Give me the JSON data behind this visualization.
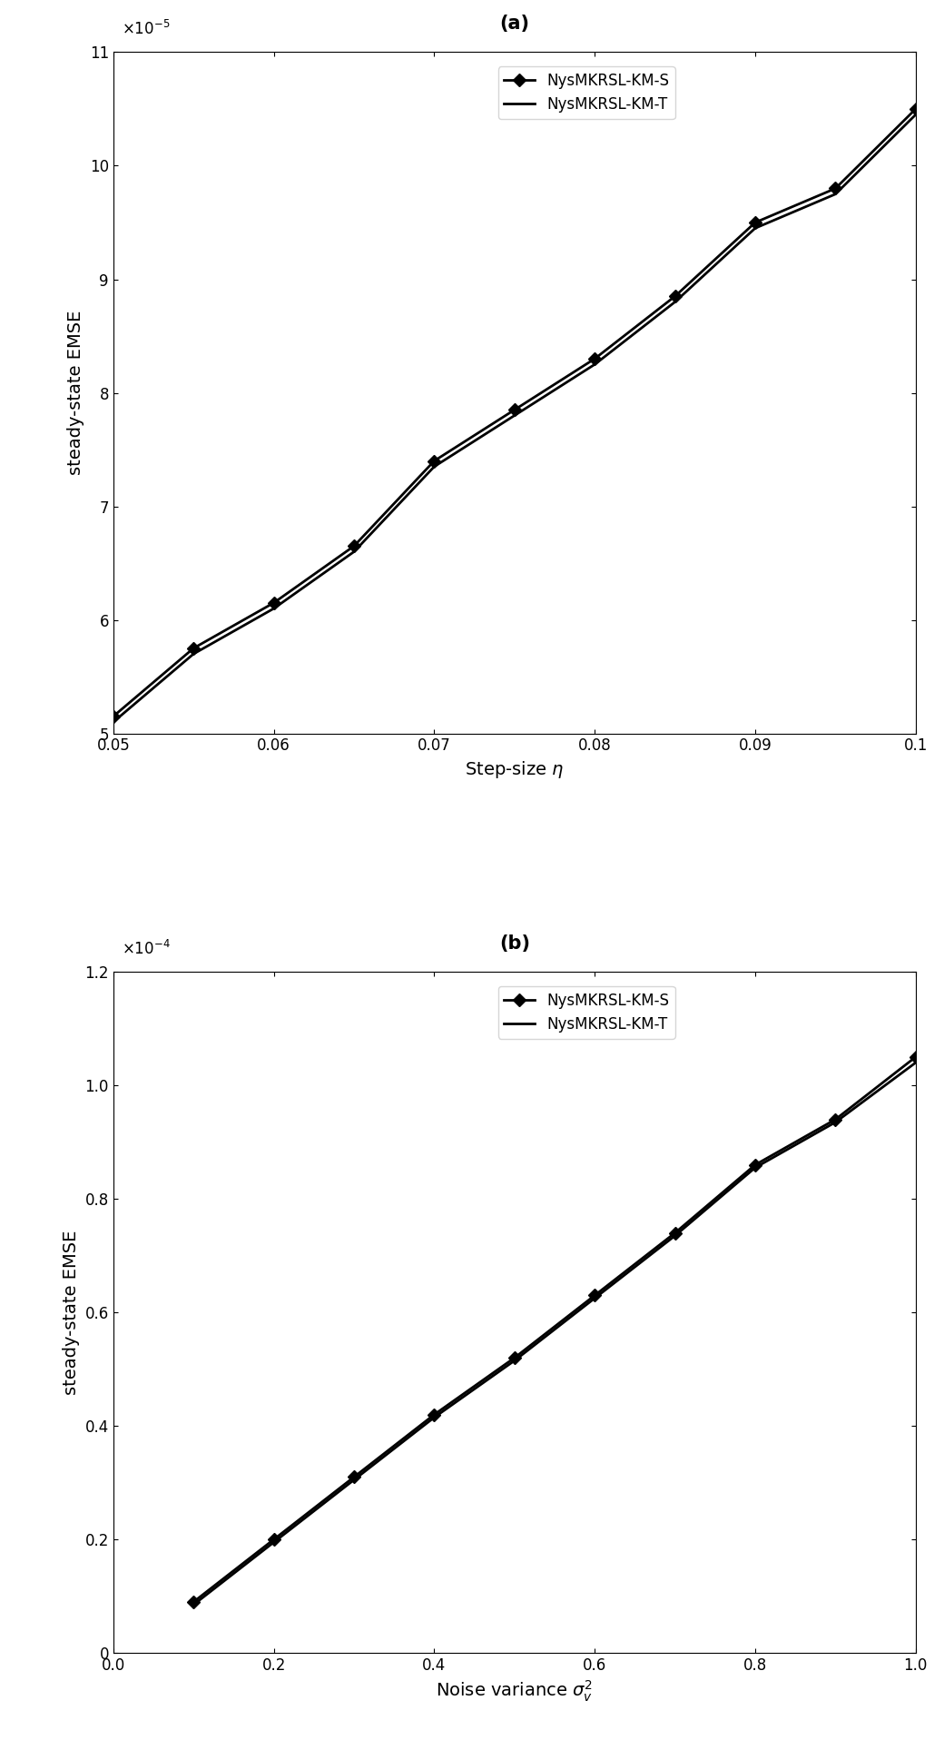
{
  "plot_a": {
    "x_S": [
      0.05,
      0.055,
      0.06,
      0.065,
      0.07,
      0.075,
      0.08,
      0.085,
      0.09,
      0.095,
      0.1
    ],
    "y_S": [
      5.15e-05,
      5.75e-05,
      6.15e-05,
      6.65e-05,
      7.4e-05,
      7.85e-05,
      8.3e-05,
      8.85e-05,
      9.5e-05,
      9.8e-05,
      0.000105
    ],
    "x_T": [
      0.05,
      0.055,
      0.06,
      0.065,
      0.07,
      0.075,
      0.08,
      0.085,
      0.09,
      0.095,
      0.1
    ],
    "y_T": [
      5.1e-05,
      5.7e-05,
      6.1e-05,
      6.6e-05,
      7.35e-05,
      7.8e-05,
      8.25e-05,
      8.8e-05,
      9.45e-05,
      9.75e-05,
      0.0001045
    ],
    "xlabel": "Step-size $\\eta$",
    "ylabel": "steady-state EMSE",
    "xlim": [
      0.05,
      0.1
    ],
    "ylim": [
      5e-05,
      0.00011
    ],
    "xticks": [
      0.05,
      0.06,
      0.07,
      0.08,
      0.09,
      0.1
    ],
    "yticks": [
      5e-05,
      6e-05,
      7e-05,
      8e-05,
      9e-05,
      0.0001,
      0.00011
    ],
    "yticklabels": [
      "5",
      "6",
      "7",
      "8",
      "9",
      "10",
      "11"
    ],
    "title": "(a)",
    "legend_S": "NysMKRSL-KM-S",
    "legend_T": "NysMKRSL-KM-T",
    "scale_label": "$\\times 10^{-5}$"
  },
  "plot_b": {
    "x_S": [
      0.1,
      0.2,
      0.3,
      0.4,
      0.5,
      0.6,
      0.7,
      0.8,
      0.9,
      1.0
    ],
    "y_S": [
      9e-06,
      2e-05,
      3.1e-05,
      4.2e-05,
      5.2e-05,
      6.3e-05,
      7.4e-05,
      8.6e-05,
      9.4e-05,
      0.000105
    ],
    "x_T": [
      0.1,
      0.2,
      0.3,
      0.4,
      0.5,
      0.6,
      0.7,
      0.8,
      0.9,
      1.0
    ],
    "y_T": [
      8.5e-06,
      1.95e-05,
      3.05e-05,
      4.15e-05,
      5.15e-05,
      6.25e-05,
      7.35e-05,
      8.55e-05,
      9.35e-05,
      0.000104
    ],
    "xlabel": "Noise variance $\\sigma_v^2$",
    "ylabel": "steady-state EMSE",
    "xlim": [
      0.0,
      1.0
    ],
    "ylim": [
      0.0,
      0.00012
    ],
    "xticks": [
      0.0,
      0.2,
      0.4,
      0.6,
      0.8,
      1.0
    ],
    "yticks": [
      0.0,
      2e-05,
      4e-05,
      6e-05,
      8e-05,
      0.0001,
      0.00012
    ],
    "yticklabels": [
      "0",
      "0.2",
      "0.4",
      "0.6",
      "0.8",
      "1.0",
      "1.2"
    ],
    "title": "(b)",
    "legend_S": "NysMKRSL-KM-S",
    "legend_T": "NysMKRSL-KM-T",
    "scale_label": "$\\times 10^{-4}$"
  },
  "line_color": "#000000",
  "marker_S": "D",
  "marker_size": 7,
  "linewidth": 2.0,
  "fontsize_label": 14,
  "fontsize_tick": 12,
  "fontsize_legend": 12,
  "fontsize_title": 15,
  "fontsize_scale": 12
}
